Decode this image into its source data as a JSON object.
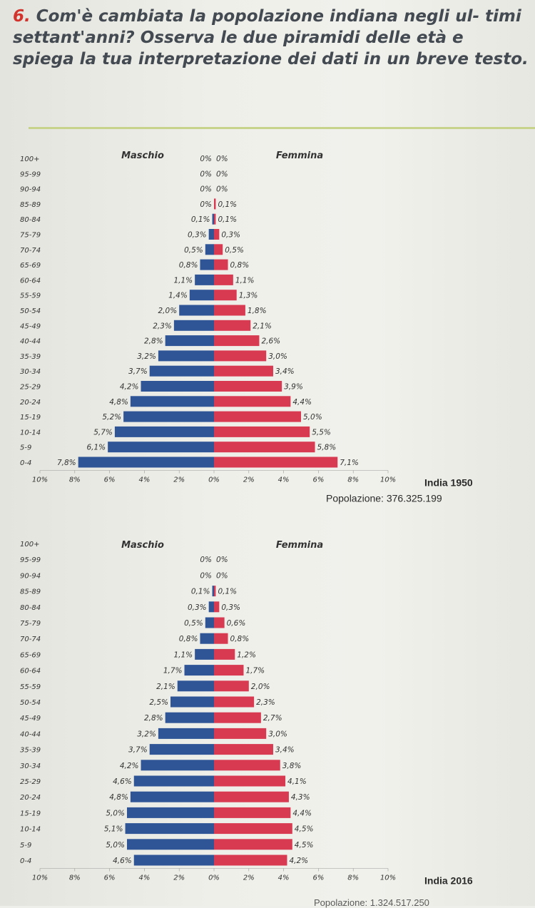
{
  "question": {
    "number": "6.",
    "text": "Com'è cambiata la popolazione indiana negli ul- timi settant'anni? Osserva le due piramidi delle età e spiega la tua interpretazione dei dati in un breve testo."
  },
  "colors": {
    "male": "#2f5597",
    "female": "#d83a52",
    "accent": "#d2332c"
  },
  "chart_data": [
    {
      "type": "bar",
      "title": "India 1950",
      "subtitle": "Popolazione: 376.325.199",
      "male_label": "Maschio",
      "female_label": "Femmina",
      "x_ticks": [
        "10%",
        "8%",
        "6%",
        "4%",
        "2%",
        "0%",
        "2%",
        "4%",
        "6%",
        "8%",
        "10%"
      ],
      "xlim": [
        -10,
        10
      ],
      "categories": [
        "100+",
        "95-99",
        "90-94",
        "85-89",
        "80-84",
        "75-79",
        "70-74",
        "65-69",
        "60-64",
        "55-59",
        "50-54",
        "45-49",
        "40-44",
        "35-39",
        "30-34",
        "25-29",
        "20-24",
        "15-19",
        "10-14",
        "5-9",
        "0-4"
      ],
      "series": [
        {
          "name": "Maschio",
          "values": [
            0,
            0,
            0,
            0,
            0.1,
            0.3,
            0.5,
            0.8,
            1.1,
            1.4,
            2.0,
            2.3,
            2.8,
            3.2,
            3.7,
            4.2,
            4.8,
            5.2,
            5.7,
            6.1,
            7.8
          ]
        },
        {
          "name": "Femmina",
          "values": [
            0,
            0,
            0,
            0.1,
            0.1,
            0.3,
            0.5,
            0.8,
            1.1,
            1.3,
            1.8,
            2.1,
            2.6,
            3.0,
            3.4,
            3.9,
            4.4,
            5.0,
            5.5,
            5.8,
            7.1
          ]
        }
      ],
      "value_labels": {
        "male": [
          "0%",
          "0%",
          "0%",
          "0%",
          "0,1%",
          "0,3%",
          "0,5%",
          "0,8%",
          "1,1%",
          "1,4%",
          "2,0%",
          "2,3%",
          "2,8%",
          "3,2%",
          "3,7%",
          "4,2%",
          "4,8%",
          "5,2%",
          "5,7%",
          "6,1%",
          "7,8%"
        ],
        "female": [
          "0%",
          "0%",
          "0%",
          "0,1%",
          "0,1%",
          "0,3%",
          "0,5%",
          "0,8%",
          "1,1%",
          "1,3%",
          "1,8%",
          "2,1%",
          "2,6%",
          "3,0%",
          "3,4%",
          "3,9%",
          "4,4%",
          "5,0%",
          "5,5%",
          "5,8%",
          "7,1%"
        ]
      }
    },
    {
      "type": "bar",
      "title": "India 2016",
      "subtitle": "",
      "male_label": "Maschio",
      "female_label": "Femmina",
      "x_ticks": [
        "10%",
        "8%",
        "6%",
        "4%",
        "2%",
        "0%",
        "2%",
        "4%",
        "6%",
        "8%",
        "10%"
      ],
      "xlim": [
        -10,
        10
      ],
      "categories": [
        "100+",
        "95-99",
        "90-94",
        "85-89",
        "80-84",
        "75-79",
        "70-74",
        "65-69",
        "60-64",
        "55-59",
        "50-54",
        "45-49",
        "40-44",
        "35-39",
        "30-34",
        "25-29",
        "20-24",
        "15-19",
        "10-14",
        "5-9",
        "0-4"
      ],
      "series": [
        {
          "name": "Maschio",
          "values": [
            0,
            0,
            0,
            0.1,
            0.3,
            0.5,
            0.8,
            1.1,
            1.7,
            2.1,
            2.5,
            2.8,
            3.2,
            3.7,
            4.2,
            4.6,
            4.8,
            5.0,
            5.1,
            5.0,
            4.6
          ]
        },
        {
          "name": "Femmina",
          "values": [
            0,
            0,
            0,
            0.1,
            0.3,
            0.6,
            0.8,
            1.2,
            1.7,
            2.0,
            2.3,
            2.7,
            3.0,
            3.4,
            3.8,
            4.1,
            4.3,
            4.4,
            4.5,
            4.5,
            4.2
          ]
        }
      ],
      "value_labels": {
        "male": [
          "",
          "0%",
          "0%",
          "0,1%",
          "0,3%",
          "0,5%",
          "0,8%",
          "1,1%",
          "1,7%",
          "2,1%",
          "2,5%",
          "2,8%",
          "3,2%",
          "3,7%",
          "4,2%",
          "4,6%",
          "4,8%",
          "5,0%",
          "5,1%",
          "5,0%",
          "4,6%"
        ],
        "female": [
          "",
          "0%",
          "0%",
          "0,1%",
          "0,3%",
          "0,6%",
          "0,8%",
          "1,2%",
          "1,7%",
          "2,0%",
          "2,3%",
          "2,7%",
          "3,0%",
          "3,4%",
          "3,8%",
          "4,1%",
          "4,3%",
          "4,4%",
          "4,5%",
          "4,5%",
          "4,2%"
        ]
      }
    }
  ],
  "footer_fragment": "Popolazione: 1.324.517.250"
}
